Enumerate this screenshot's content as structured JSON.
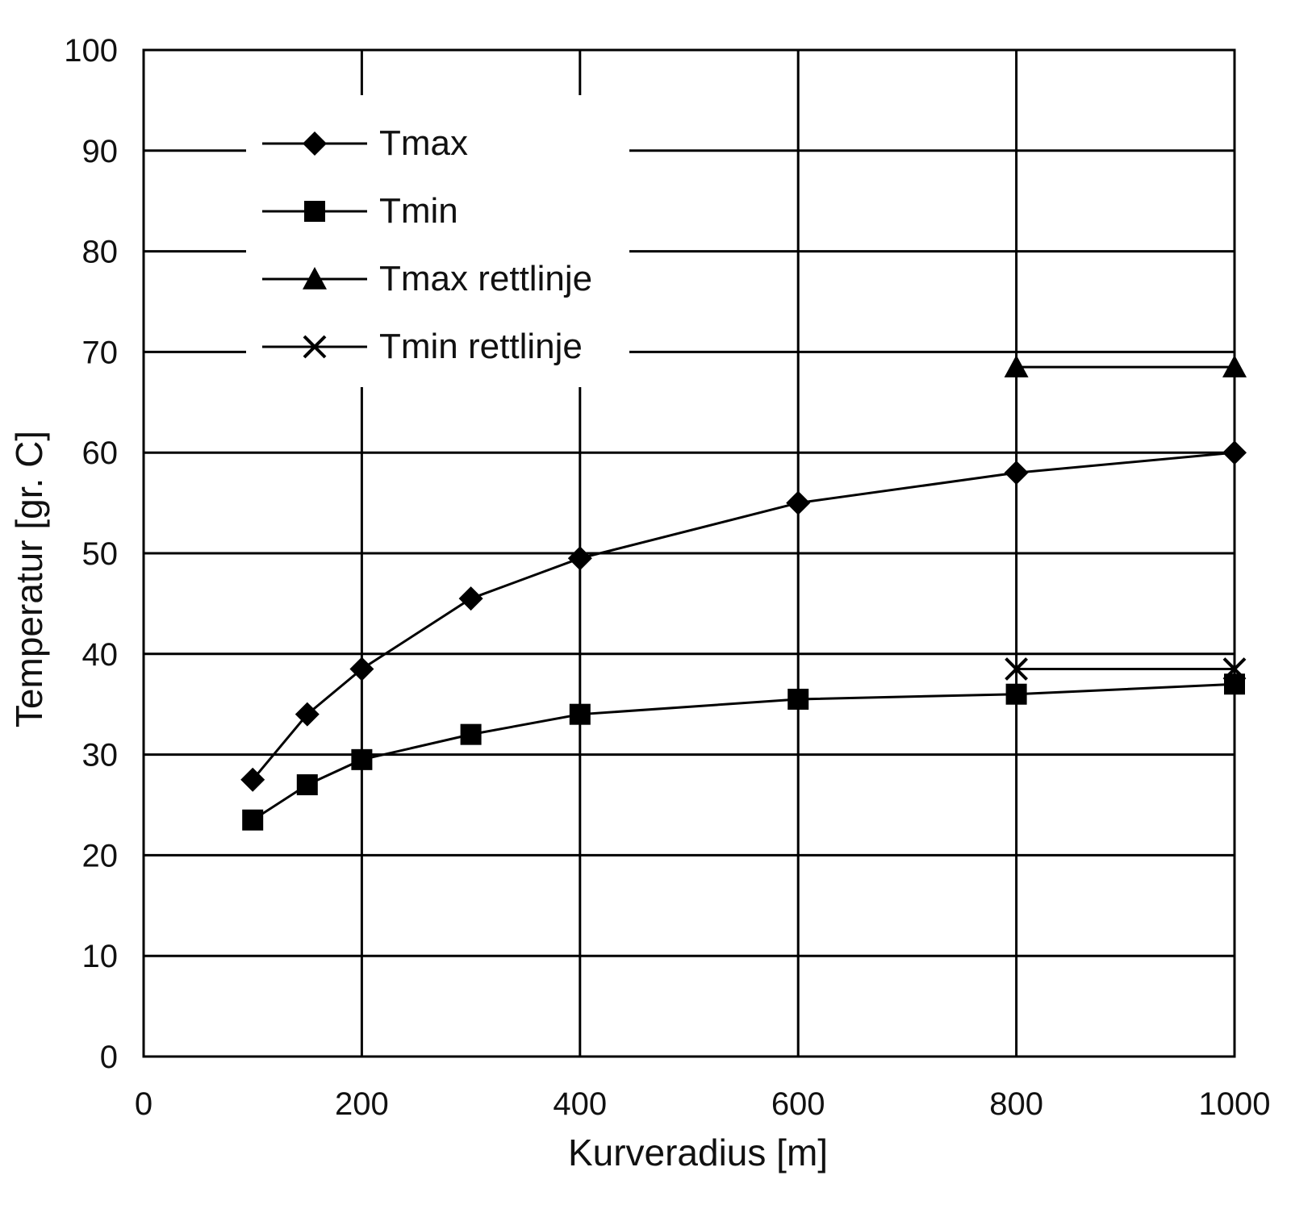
{
  "chart_data": {
    "type": "line",
    "title": "",
    "xlabel": "Kurveradius [m]",
    "ylabel": "Temperatur [gr. C]",
    "xlim": [
      0,
      1000
    ],
    "ylim": [
      0,
      100
    ],
    "xticks": [
      0,
      200,
      400,
      600,
      800,
      1000
    ],
    "yticks": [
      0,
      10,
      20,
      30,
      40,
      50,
      60,
      70,
      80,
      90,
      100
    ],
    "x_gridlines": [
      200,
      400,
      600,
      800
    ],
    "grid": true,
    "legend_position": "top-left",
    "series": [
      {
        "name": "Tmax",
        "marker": "diamond",
        "x": [
          100,
          150,
          200,
          300,
          400,
          600,
          800,
          1000
        ],
        "y": [
          27.5,
          34,
          38.5,
          45.5,
          49.5,
          55,
          58,
          60
        ]
      },
      {
        "name": "Tmin",
        "marker": "square",
        "x": [
          100,
          150,
          200,
          300,
          400,
          600,
          800,
          1000
        ],
        "y": [
          23.5,
          27,
          29.5,
          32,
          34,
          35.5,
          36,
          37
        ]
      },
      {
        "name": "Tmax rettlinje",
        "marker": "triangle",
        "x": [
          800,
          1000
        ],
        "y": [
          68.5,
          68.5
        ]
      },
      {
        "name": "Tmin rettlinje",
        "marker": "x",
        "x": [
          800,
          1000
        ],
        "y": [
          38.5,
          38.5
        ]
      }
    ]
  }
}
